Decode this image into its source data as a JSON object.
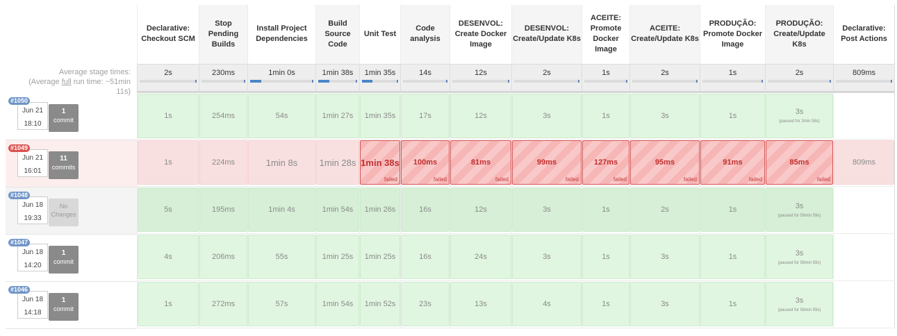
{
  "avg_label": {
    "line1": "Average stage times:",
    "line2_prefix": "(Average ",
    "line2_full": "full",
    "line2_suffix": " run time: ~51min",
    "line3": "11s)"
  },
  "stages": [
    "Declarative: Checkout SCM",
    "Stop Pending Builds",
    "Install Project Dependencies",
    "Build Source Code",
    "Unit Test",
    "Code analysis",
    "DESENVOL: Create Docker Image",
    "DESENVOL: Create/Update K8s",
    "ACEITE: Promote Docker Image",
    "ACEITE: Create/Update K8s",
    "PRODUÇÃO: Promote Docker Image",
    "PRODUÇÃO: Create/Update K8s",
    "Declarative: Post Actions"
  ],
  "averages": [
    {
      "value": "2s",
      "fraction": 0.0
    },
    {
      "value": "230ms",
      "fraction": 0.0
    },
    {
      "value": "1min 0s",
      "fraction": 0.18
    },
    {
      "value": "1min 38s",
      "fraction": 0.28
    },
    {
      "value": "1min 35s",
      "fraction": 0.28
    },
    {
      "value": "14s",
      "fraction": 0.0
    },
    {
      "value": "12s",
      "fraction": 0.0
    },
    {
      "value": "2s",
      "fraction": 0.0
    },
    {
      "value": "1s",
      "fraction": 0.0
    },
    {
      "value": "2s",
      "fraction": 0.0
    },
    {
      "value": "1s",
      "fraction": 0.0
    },
    {
      "value": "2s",
      "fraction": 0.0
    },
    {
      "value": "809ms",
      "fraction": 0.0
    }
  ],
  "builds": [
    {
      "number": "#1050",
      "date": "Jun 21",
      "time": "18:10",
      "commits_count": "1",
      "commits_label": "commit",
      "status": "success",
      "cells": [
        {
          "text": "1s"
        },
        {
          "text": "254ms"
        },
        {
          "text": "54s"
        },
        {
          "text": "1min 27s"
        },
        {
          "text": "1min 35s"
        },
        {
          "text": "17s"
        },
        {
          "text": "12s"
        },
        {
          "text": "3s"
        },
        {
          "text": "1s"
        },
        {
          "text": "3s"
        },
        {
          "text": "1s"
        },
        {
          "text": "3s",
          "paused": "(paused for 2min 58s)"
        },
        {
          "text": ""
        }
      ]
    },
    {
      "number": "#1049",
      "date": "Jun 21",
      "time": "16:01",
      "commits_count": "11",
      "commits_label": "commits",
      "status": "failed",
      "cells": [
        {
          "text": "1s"
        },
        {
          "text": "224ms"
        },
        {
          "text": "1min 8s"
        },
        {
          "text": "1min 28s"
        },
        {
          "text": "1min 38s",
          "failed": "failed"
        },
        {
          "text": "100ms",
          "failed": "failed"
        },
        {
          "text": "81ms",
          "failed": "failed"
        },
        {
          "text": "99ms",
          "failed": "failed"
        },
        {
          "text": "127ms",
          "failed": "failed"
        },
        {
          "text": "95ms",
          "failed": "failed"
        },
        {
          "text": "91ms",
          "failed": "failed"
        },
        {
          "text": "85ms",
          "failed": "failed"
        },
        {
          "text": "809ms"
        }
      ]
    },
    {
      "number": "#1048",
      "date": "Jun 18",
      "time": "19:33",
      "commits_count": "No",
      "commits_label": "Changes",
      "status": "nochange",
      "cells": [
        {
          "text": "5s"
        },
        {
          "text": "195ms"
        },
        {
          "text": "1min 4s"
        },
        {
          "text": "1min 54s"
        },
        {
          "text": "1min 26s"
        },
        {
          "text": "16s"
        },
        {
          "text": "12s"
        },
        {
          "text": "3s"
        },
        {
          "text": "1s"
        },
        {
          "text": "2s"
        },
        {
          "text": "1s"
        },
        {
          "text": "3s",
          "paused": "(paused for 59min 59s)"
        },
        {
          "text": ""
        }
      ]
    },
    {
      "number": "#1047",
      "date": "Jun 18",
      "time": "14:20",
      "commits_count": "1",
      "commits_label": "commit",
      "status": "success",
      "cells": [
        {
          "text": "4s"
        },
        {
          "text": "206ms"
        },
        {
          "text": "55s"
        },
        {
          "text": "1min 25s"
        },
        {
          "text": "1min 25s"
        },
        {
          "text": "16s"
        },
        {
          "text": "24s"
        },
        {
          "text": "3s"
        },
        {
          "text": "1s"
        },
        {
          "text": "3s"
        },
        {
          "text": "1s"
        },
        {
          "text": "3s",
          "paused": "(paused for 59min 59s)"
        },
        {
          "text": ""
        }
      ]
    },
    {
      "number": "#1046",
      "date": "Jun 18",
      "time": "14:18",
      "commits_count": "1",
      "commits_label": "commit",
      "status": "success",
      "cells": [
        {
          "text": "1s"
        },
        {
          "text": "272ms"
        },
        {
          "text": "57s"
        },
        {
          "text": "1min 54s"
        },
        {
          "text": "1min 52s"
        },
        {
          "text": "23s"
        },
        {
          "text": "13s"
        },
        {
          "text": "4s"
        },
        {
          "text": "1s"
        },
        {
          "text": "3s"
        },
        {
          "text": "1s"
        },
        {
          "text": "3s",
          "paused": "(paused for 59min 59s)"
        },
        {
          "text": ""
        }
      ]
    }
  ]
}
